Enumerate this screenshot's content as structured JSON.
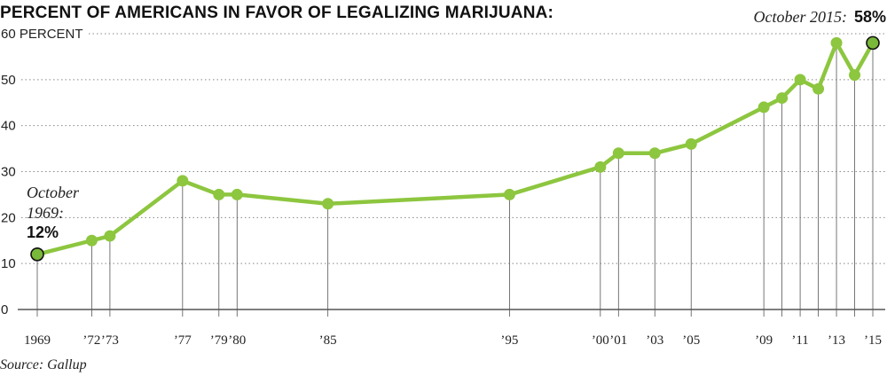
{
  "chart_data": {
    "type": "line",
    "title": "PERCENT OF AMERICANS IN FAVOR OF LEGALIZING MARIJUANA:",
    "ylabel_unit": "PERCENT",
    "ylim": [
      0,
      60
    ],
    "yticks": [
      0,
      10,
      20,
      30,
      40,
      50,
      60
    ],
    "grid": "horizontal dotted",
    "x": [
      1969,
      1972,
      1973,
      1977,
      1979,
      1980,
      1985,
      1995,
      2000,
      2001,
      2003,
      2005,
      2009,
      2010,
      2011,
      2012,
      2013,
      2014,
      2015
    ],
    "values": [
      12,
      15,
      16,
      28,
      25,
      25,
      23,
      25,
      31,
      34,
      34,
      36,
      44,
      46,
      50,
      48,
      58,
      51,
      58
    ],
    "xtick_labels": [
      {
        "x": 1969,
        "label": "1969"
      },
      {
        "x": 1972,
        "label": "’72"
      },
      {
        "x": 1973,
        "label": "’73"
      },
      {
        "x": 1977,
        "label": "’77"
      },
      {
        "x": 1979,
        "label": "’79"
      },
      {
        "x": 1980,
        "label": "’80"
      },
      {
        "x": 1985,
        "label": "’85"
      },
      {
        "x": 1995,
        "label": "’95"
      },
      {
        "x": 2000,
        "label": "’00"
      },
      {
        "x": 2001,
        "label": "’01"
      },
      {
        "x": 2003,
        "label": "’03"
      },
      {
        "x": 2005,
        "label": "’05"
      },
      {
        "x": 2009,
        "label": "’09"
      },
      {
        "x": 2011,
        "label": "’11"
      },
      {
        "x": 2013,
        "label": "’13"
      },
      {
        "x": 2015,
        "label": "’15"
      }
    ],
    "annotations": {
      "start_line1": "October",
      "start_line2": "1969:",
      "start_value": "12%",
      "end_label": "October 2015:",
      "end_value": "58%"
    },
    "source": "Source: Gallup",
    "colors": {
      "line": "#8dc63f",
      "marker_end_fill": "#7ab83a",
      "grid": "#888888",
      "drop_line": "#555555"
    }
  }
}
